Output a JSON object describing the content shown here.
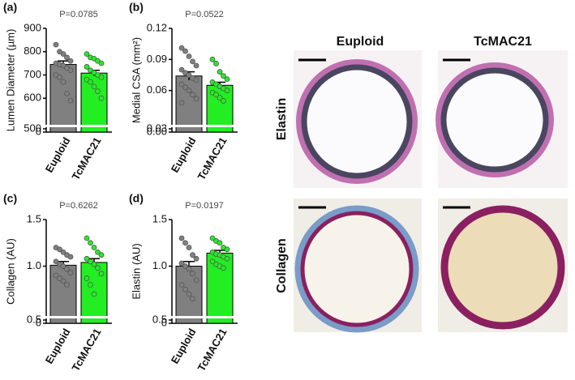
{
  "chart_data": [
    {
      "type": "bar",
      "panel": "(a)",
      "title": "P=0.0785",
      "ylabel": "Lumen Diameter (µm)",
      "categories": [
        "Euploid",
        "TcMAC21"
      ],
      "values": [
        745,
        708
      ],
      "errors": [
        15,
        12
      ],
      "colors": [
        "#808080",
        "#22ee22"
      ],
      "points": [
        [
          830,
          800,
          790,
          775,
          760,
          750,
          745,
          740,
          730,
          720,
          700,
          690,
          670,
          620,
          590
        ],
        [
          790,
          775,
          770,
          760,
          750,
          735,
          720,
          710,
          700,
          690,
          680,
          670,
          650,
          630,
          600
        ]
      ],
      "ylim": [
        0,
        900
      ],
      "ybreak": [
        0,
        500
      ],
      "yticks": [
        0,
        500,
        600,
        700,
        800,
        900
      ]
    },
    {
      "type": "bar",
      "panel": "(b)",
      "title": "P=0.0522",
      "ylabel": "Medial CSA (mm²)",
      "categories": [
        "Euploid",
        "TcMAC21"
      ],
      "values": [
        0.074,
        0.065
      ],
      "errors": [
        0.004,
        0.003
      ],
      "colors": [
        "#808080",
        "#22ee22"
      ],
      "points": [
        [
          0.101,
          0.098,
          0.093,
          0.088,
          0.084,
          0.08,
          0.077,
          0.075,
          0.072,
          0.07,
          0.066,
          0.063,
          0.06,
          0.056,
          0.052,
          0.048
        ],
        [
          0.09,
          0.086,
          0.078,
          0.074,
          0.071,
          0.068,
          0.066,
          0.064,
          0.062,
          0.06,
          0.058,
          0.056,
          0.053,
          0.05
        ]
      ],
      "ylim": [
        0,
        0.12
      ],
      "ybreak": [
        0,
        0.03
      ],
      "yticks": [
        {
          "value": 0,
          "label": "0.00"
        },
        0.03,
        0.06,
        0.09,
        0.12
      ]
    },
    {
      "type": "bar",
      "panel": "(c)",
      "title": "P=0.6262",
      "ylabel": "Collagen (AU)",
      "categories": [
        "Euploid",
        "TcMAC21"
      ],
      "values": [
        1.01,
        1.04
      ],
      "errors": [
        0.04,
        0.04
      ],
      "colors": [
        "#808080",
        "#22ee22"
      ],
      "points": [
        [
          1.2,
          1.18,
          1.15,
          1.12,
          1.1,
          1.05,
          1.02,
          1.0,
          0.97,
          0.93,
          0.9,
          0.87,
          0.84,
          0.8
        ],
        [
          1.3,
          1.25,
          1.2,
          1.15,
          1.12,
          1.08,
          1.05,
          1.02,
          0.98,
          0.92,
          0.87,
          0.8,
          0.7
        ]
      ],
      "ylim": [
        0,
        1.5
      ],
      "ybreak": [
        0,
        0.5
      ],
      "yticks": [
        0,
        0.5,
        {
          "value": 1.0,
          "label": "1.0"
        },
        1.5
      ]
    },
    {
      "type": "bar",
      "panel": "(d)",
      "title": "P=0.0197",
      "ylabel": "Elastin (AU)",
      "categories": [
        "Euploid",
        "TcMAC21"
      ],
      "values": [
        1.0,
        1.14
      ],
      "errors": [
        0.05,
        0.03
      ],
      "colors": [
        "#808080",
        "#22ee22"
      ],
      "points": [
        [
          1.3,
          1.25,
          1.2,
          1.12,
          1.08,
          1.03,
          1.0,
          0.97,
          0.92,
          0.85,
          0.8,
          0.75,
          0.7,
          0.65
        ],
        [
          1.3,
          1.27,
          1.25,
          1.2,
          1.18,
          1.15,
          1.13,
          1.12,
          1.1,
          1.08,
          1.05,
          1.02,
          1.0,
          0.98
        ]
      ],
      "ylim": [
        0,
        1.5
      ],
      "ybreak": [
        0,
        0.5
      ],
      "yticks": [
        0,
        0.5,
        {
          "value": 1.0,
          "label": "1.0"
        },
        1.5
      ]
    }
  ],
  "images": {
    "columns": [
      "Euploid",
      "TcMAC21"
    ],
    "rows": [
      "Elastin",
      "Collagen"
    ]
  }
}
